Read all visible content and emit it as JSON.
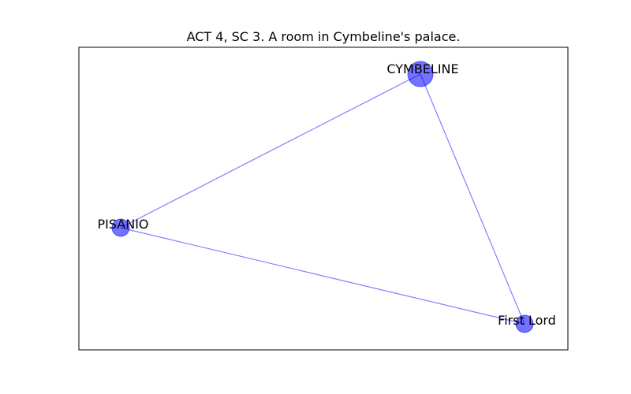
{
  "title": "ACT 4, SC 3. A room in Cymbeline's palace.",
  "colors": {
    "node": "#0000ff",
    "edge": "#0000ff",
    "frame": "#000000",
    "background": "#ffffff"
  },
  "graph": {
    "nodes": [
      {
        "id": "cymbeline",
        "label": "CYMBELINE"
      },
      {
        "id": "pisanio",
        "label": "PISANIO"
      },
      {
        "id": "first-lord",
        "label": "First Lord"
      }
    ],
    "edges": [
      {
        "source": "cymbeline",
        "target": "pisanio"
      },
      {
        "source": "cymbeline",
        "target": "first-lord"
      },
      {
        "source": "pisanio",
        "target": "first-lord"
      }
    ]
  }
}
